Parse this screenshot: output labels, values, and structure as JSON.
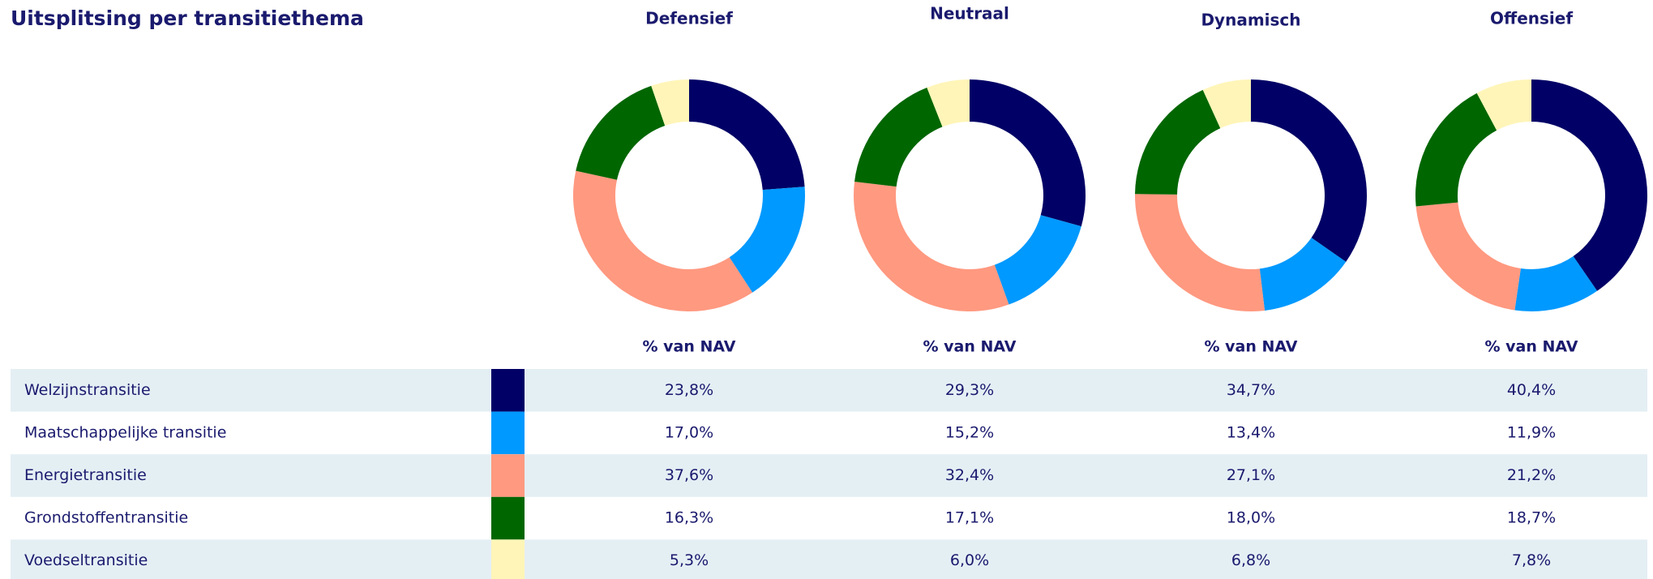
{
  "title": "Uitsplitsing per transitiethema",
  "chart_data": [
    {
      "type": "pie",
      "title": "Defensief",
      "label": "% van NAV",
      "categories": [
        "Welzijnstransitie",
        "Maatschappelijke transitie",
        "Energietransitie",
        "Grondstoffentransitie",
        "Voedseltransitie"
      ],
      "colors": [
        "#000066",
        "#0099ff",
        "#ff9980",
        "#006600",
        "#fff5b8"
      ],
      "values": [
        23.8,
        17.0,
        37.6,
        16.3,
        5.3
      ],
      "value_labels": [
        "23,8%",
        "17,0%",
        "37,6%",
        "16,3%",
        "5,3%"
      ]
    },
    {
      "type": "pie",
      "title": "Neutraal",
      "label": "% van NAV",
      "categories": [
        "Welzijnstransitie",
        "Maatschappelijke transitie",
        "Energietransitie",
        "Grondstoffentransitie",
        "Voedseltransitie"
      ],
      "colors": [
        "#000066",
        "#0099ff",
        "#ff9980",
        "#006600",
        "#fff5b8"
      ],
      "values": [
        29.3,
        15.2,
        32.4,
        17.1,
        6.0
      ],
      "value_labels": [
        "29,3%",
        "15,2%",
        "32,4%",
        "17,1%",
        "6,0%"
      ]
    },
    {
      "type": "pie",
      "title": "Dynamisch",
      "label": "% van NAV",
      "categories": [
        "Welzijnstransitie",
        "Maatschappelijke transitie",
        "Energietransitie",
        "Grondstoffentransitie",
        "Voedseltransitie"
      ],
      "colors": [
        "#000066",
        "#0099ff",
        "#ff9980",
        "#006600",
        "#fff5b8"
      ],
      "values": [
        34.7,
        13.4,
        27.1,
        18.0,
        6.8
      ],
      "value_labels": [
        "34,7%",
        "13,4%",
        "27,1%",
        "18,0%",
        "6,8%"
      ]
    },
    {
      "type": "pie",
      "title": "Offensief",
      "label": "% van NAV",
      "categories": [
        "Welzijnstransitie",
        "Maatschappelijke transitie",
        "Energietransitie",
        "Grondstoffentransitie",
        "Voedseltransitie"
      ],
      "colors": [
        "#000066",
        "#0099ff",
        "#ff9980",
        "#006600",
        "#fff5b8"
      ],
      "values": [
        40.4,
        11.9,
        21.2,
        18.7,
        7.8
      ],
      "value_labels": [
        "40,4%",
        "11,9%",
        "21,2%",
        "18,7%",
        "7,8%"
      ]
    }
  ]
}
